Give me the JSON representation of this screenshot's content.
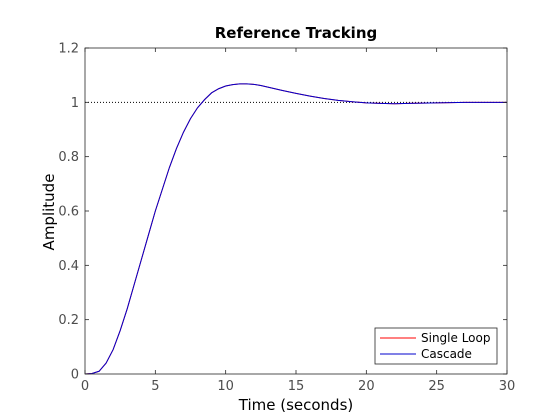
{
  "chart_data": {
    "type": "line",
    "title": "Reference Tracking",
    "xlabel": "Time (seconds)",
    "ylabel": "Amplitude",
    "xlim": [
      0,
      30
    ],
    "ylim": [
      0,
      1.2
    ],
    "x_ticks": [
      0,
      5,
      10,
      15,
      20,
      25,
      30
    ],
    "y_ticks": [
      0,
      0.2,
      0.4,
      0.6,
      0.8,
      1,
      1.2
    ],
    "x_tick_labels": [
      "0",
      "5",
      "10",
      "15",
      "20",
      "25",
      "30"
    ],
    "y_tick_labels": [
      "0",
      "0.2",
      "0.4",
      "0.6",
      "0.8",
      "1",
      "1.2"
    ],
    "grid": false,
    "legend_position": "bottom-right",
    "reference_line": {
      "y": 1,
      "style": "dotted",
      "color": "#000000"
    },
    "series": [
      {
        "name": "Single Loop",
        "color": "#ff0000",
        "x": [
          0,
          0.5,
          1,
          1.5,
          2,
          2.5,
          3,
          3.5,
          4,
          4.5,
          5,
          5.5,
          6,
          6.5,
          7,
          7.5,
          8,
          8.5,
          9,
          9.5,
          10,
          10.5,
          11,
          11.5,
          12,
          12.5,
          13,
          13.5,
          14,
          15,
          16,
          17,
          18,
          19,
          20,
          21,
          22,
          23,
          24,
          25,
          26,
          27,
          28,
          29,
          30
        ],
        "values": [
          0,
          0.002,
          0.01,
          0.04,
          0.09,
          0.16,
          0.24,
          0.33,
          0.42,
          0.51,
          0.6,
          0.68,
          0.76,
          0.83,
          0.89,
          0.94,
          0.98,
          1.01,
          1.035,
          1.05,
          1.06,
          1.065,
          1.068,
          1.068,
          1.066,
          1.062,
          1.056,
          1.05,
          1.044,
          1.033,
          1.023,
          1.014,
          1.007,
          1.002,
          0.998,
          0.996,
          0.995,
          0.996,
          0.997,
          0.998,
          0.999,
          1.0,
          1.0,
          1.0,
          1.0
        ]
      },
      {
        "name": "Cascade",
        "color": "#0000cc",
        "x": [
          0,
          0.5,
          1,
          1.5,
          2,
          2.5,
          3,
          3.5,
          4,
          4.5,
          5,
          5.5,
          6,
          6.5,
          7,
          7.5,
          8,
          8.5,
          9,
          9.5,
          10,
          10.5,
          11,
          11.5,
          12,
          12.5,
          13,
          13.5,
          14,
          15,
          16,
          17,
          18,
          19,
          20,
          21,
          22,
          23,
          24,
          25,
          26,
          27,
          28,
          29,
          30
        ],
        "values": [
          0,
          0.002,
          0.01,
          0.04,
          0.09,
          0.16,
          0.24,
          0.33,
          0.42,
          0.51,
          0.6,
          0.68,
          0.76,
          0.83,
          0.89,
          0.94,
          0.98,
          1.01,
          1.035,
          1.05,
          1.06,
          1.065,
          1.068,
          1.068,
          1.066,
          1.062,
          1.056,
          1.05,
          1.044,
          1.033,
          1.023,
          1.014,
          1.007,
          1.002,
          0.998,
          0.996,
          0.995,
          0.996,
          0.997,
          0.998,
          0.999,
          1.0,
          1.0,
          1.0,
          1.0
        ]
      }
    ]
  }
}
